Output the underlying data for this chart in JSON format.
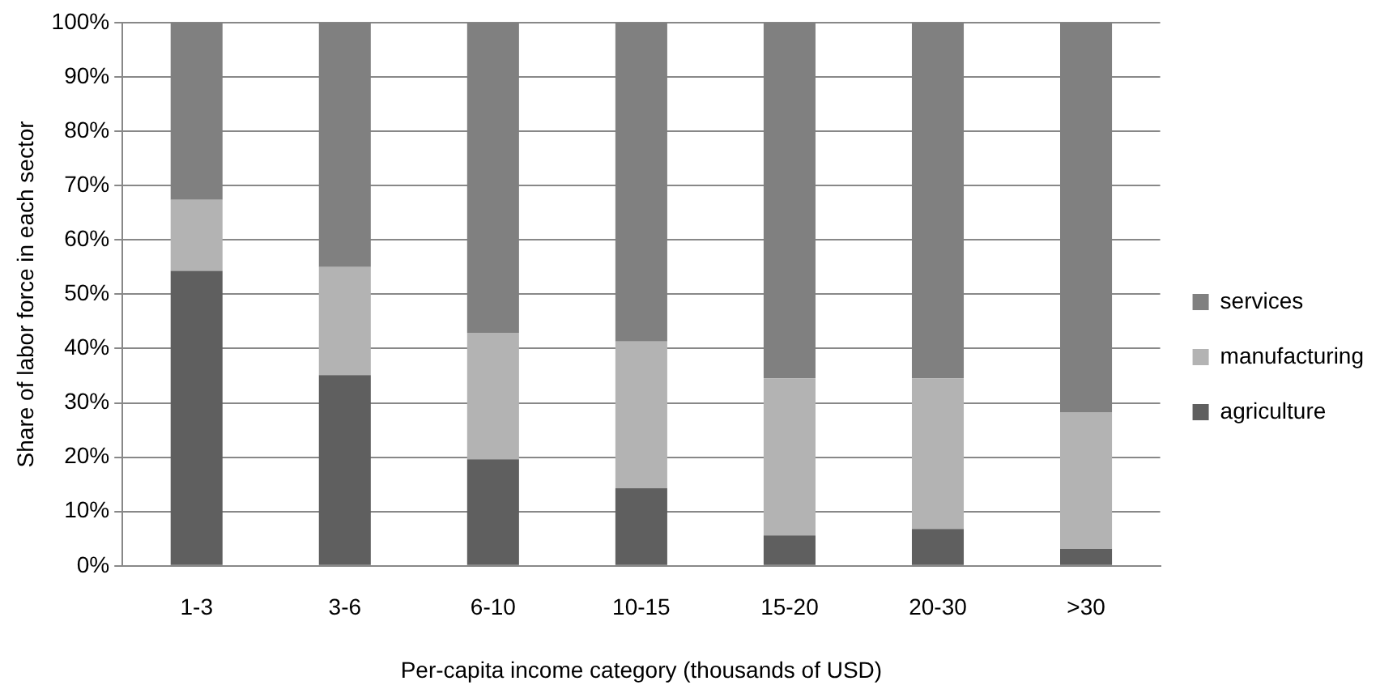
{
  "chart_data": {
    "type": "bar",
    "stacked": true,
    "xlabel": "Per-capita income category (thousands of USD)",
    "ylabel": "Share of labor force in each sector",
    "categories": [
      "1-3",
      "3-6",
      "6-10",
      "10-15",
      "15-20",
      "20-30",
      ">30"
    ],
    "series": [
      {
        "name": "agriculture",
        "color": "#5f5f5f",
        "values": [
          54.3,
          35.1,
          19.6,
          14.3,
          5.6,
          6.8,
          3.1
        ]
      },
      {
        "name": "manufacturing",
        "color": "#b3b3b3",
        "values": [
          13.1,
          19.9,
          23.3,
          27.0,
          28.9,
          27.7,
          25.2
        ]
      },
      {
        "name": "services",
        "color": "#808080",
        "values": [
          32.6,
          45.0,
          57.1,
          58.7,
          65.5,
          65.5,
          71.7
        ]
      }
    ],
    "ylim": [
      0,
      100
    ],
    "yticks": [
      {
        "value": 0,
        "label": "0%"
      },
      {
        "value": 10,
        "label": "10%"
      },
      {
        "value": 20,
        "label": "20%"
      },
      {
        "value": 30,
        "label": "30%"
      },
      {
        "value": 40,
        "label": "40%"
      },
      {
        "value": 50,
        "label": "50%"
      },
      {
        "value": 60,
        "label": "60%"
      },
      {
        "value": 70,
        "label": "70%"
      },
      {
        "value": 80,
        "label": "80%"
      },
      {
        "value": 90,
        "label": "90%"
      },
      {
        "value": 100,
        "label": "100%"
      }
    ],
    "grid": "y",
    "legend": "right"
  }
}
